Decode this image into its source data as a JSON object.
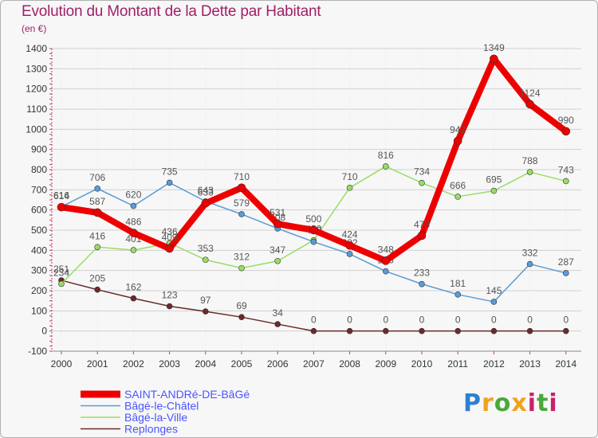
{
  "title": "Evolution du Montant de la Dette par Habitant",
  "subtitle": "(en €)",
  "logo": {
    "letters": [
      "P",
      "r",
      "o",
      "x",
      "i",
      "t",
      "i"
    ]
  },
  "colors": {
    "title": "#a0206a",
    "background": "#f7f7f7",
    "grid": "#d0d0d0",
    "axis_text": "#333333",
    "label_text": "#555555",
    "legend_text": "#4a55ff"
  },
  "chart_data": {
    "type": "line",
    "x": [
      2000,
      2001,
      2002,
      2003,
      2004,
      2005,
      2006,
      2007,
      2008,
      2009,
      2010,
      2011,
      2012,
      2013,
      2014
    ],
    "ylim": [
      -100,
      1400
    ],
    "yticks": [
      -100,
      0,
      100,
      200,
      300,
      400,
      500,
      600,
      700,
      800,
      900,
      1000,
      1100,
      1200,
      1300,
      1400
    ],
    "grid": true,
    "legend_position": "bottom-left",
    "series": [
      {
        "name": "Replonges",
        "color": "#6b2a2a",
        "values": [
          251,
          205,
          162,
          123,
          97,
          69,
          34,
          0,
          0,
          0,
          0,
          0,
          0,
          0,
          0
        ]
      },
      {
        "name": "Bâgé-la-Ville",
        "color": "#99dd66",
        "values": [
          234,
          416,
          401,
          436,
          353,
          312,
          347,
          450,
          710,
          816,
          734,
          666,
          695,
          788,
          743
        ]
      },
      {
        "name": "Bâgé-le-Châtel",
        "color": "#5b9bd5",
        "values": [
          616,
          706,
          620,
          735,
          643,
          579,
          508,
          442,
          382,
          296,
          233,
          181,
          145,
          332,
          287
        ]
      },
      {
        "name": "SAINT-ANDRé-DE-BâGé",
        "color": "#ee0000",
        "values": [
          614,
          587,
          486,
          409,
          633,
          710,
          531,
          500,
          424,
          348,
          473,
          942,
          1349,
          1124,
          990
        ]
      }
    ],
    "legend_order": [
      "SAINT-ANDRé-DE-BâGé",
      "Bâgé-le-Châtel",
      "Bâgé-la-Ville",
      "Replonges"
    ]
  }
}
